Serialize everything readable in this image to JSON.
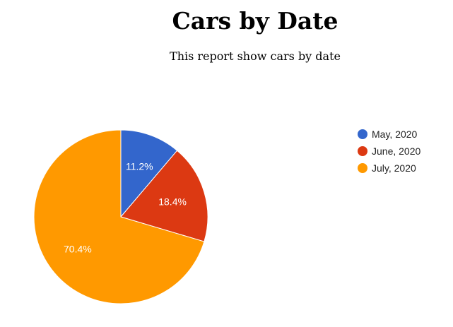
{
  "page": {
    "title": "Cars by Date",
    "subtitle": "This report show cars by date"
  },
  "chart_data": {
    "type": "pie",
    "title": "",
    "categories": [
      "May, 2020",
      "June, 2020",
      "July, 2020"
    ],
    "values": [
      11.2,
      18.4,
      70.4
    ],
    "value_labels": [
      "11.2%",
      "18.4%",
      "70.4%"
    ],
    "colors": [
      "#3366cc",
      "#dc3912",
      "#ff9900"
    ],
    "legend_position": "right",
    "legend": [
      "May, 2020",
      "June, 2020",
      "July, 2020"
    ]
  }
}
